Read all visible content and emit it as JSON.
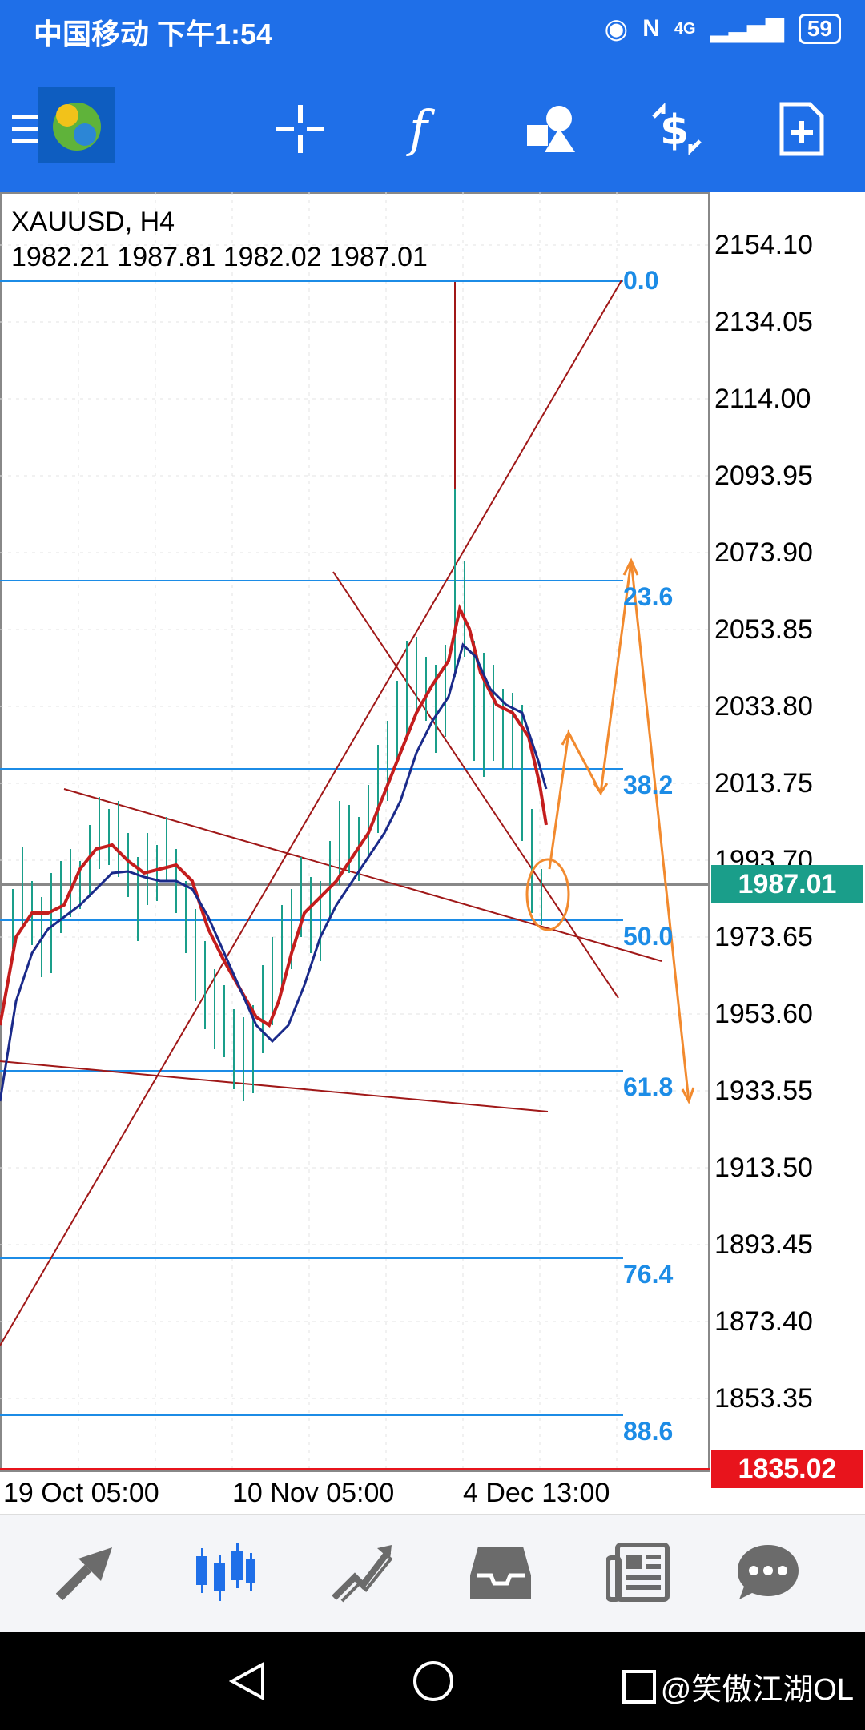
{
  "status_bar": {
    "carrier_time": "中国移动 下午1:54",
    "network": "4G",
    "battery": "59"
  },
  "chart": {
    "symbol_timeframe": "XAUUSD, H4",
    "ohlc": "1982.21 1987.81 1982.02 1987.01",
    "price_axis": [
      "2154.10",
      "2134.05",
      "2114.00",
      "2093.95",
      "2073.90",
      "2053.85",
      "2033.80",
      "2013.75",
      "1993.70",
      "1973.65",
      "1953.60",
      "1933.55",
      "1913.50",
      "1893.45",
      "1873.40",
      "1853.35"
    ],
    "fib_levels": [
      "0.0",
      "23.6",
      "38.2",
      "50.0",
      "61.8",
      "76.4",
      "88.6"
    ],
    "time_axis": [
      "19 Oct 05:00",
      "10 Nov 05:00",
      "4 Dec 13:00"
    ],
    "current_price": "1987.01",
    "low_price": "1835.02"
  },
  "colors": {
    "brand_blue": "#1f6fe8",
    "bid_green": "#1a9e8a",
    "low_red": "#e8141c",
    "fib_blue": "#1c8ce6",
    "annotation_orange": "#f28a2e"
  },
  "icons": {
    "toolbar": [
      "menu-icon",
      "metatrader-logo",
      "crosshair-icon",
      "indicators-icon",
      "objects-icon",
      "trade-icon",
      "new-order-icon"
    ],
    "bottom_nav": [
      "quotes-icon",
      "chart-icon",
      "trade-icon",
      "history-icon",
      "news-icon",
      "messages-icon"
    ]
  },
  "watermark": "@笑傲江湖OL"
}
